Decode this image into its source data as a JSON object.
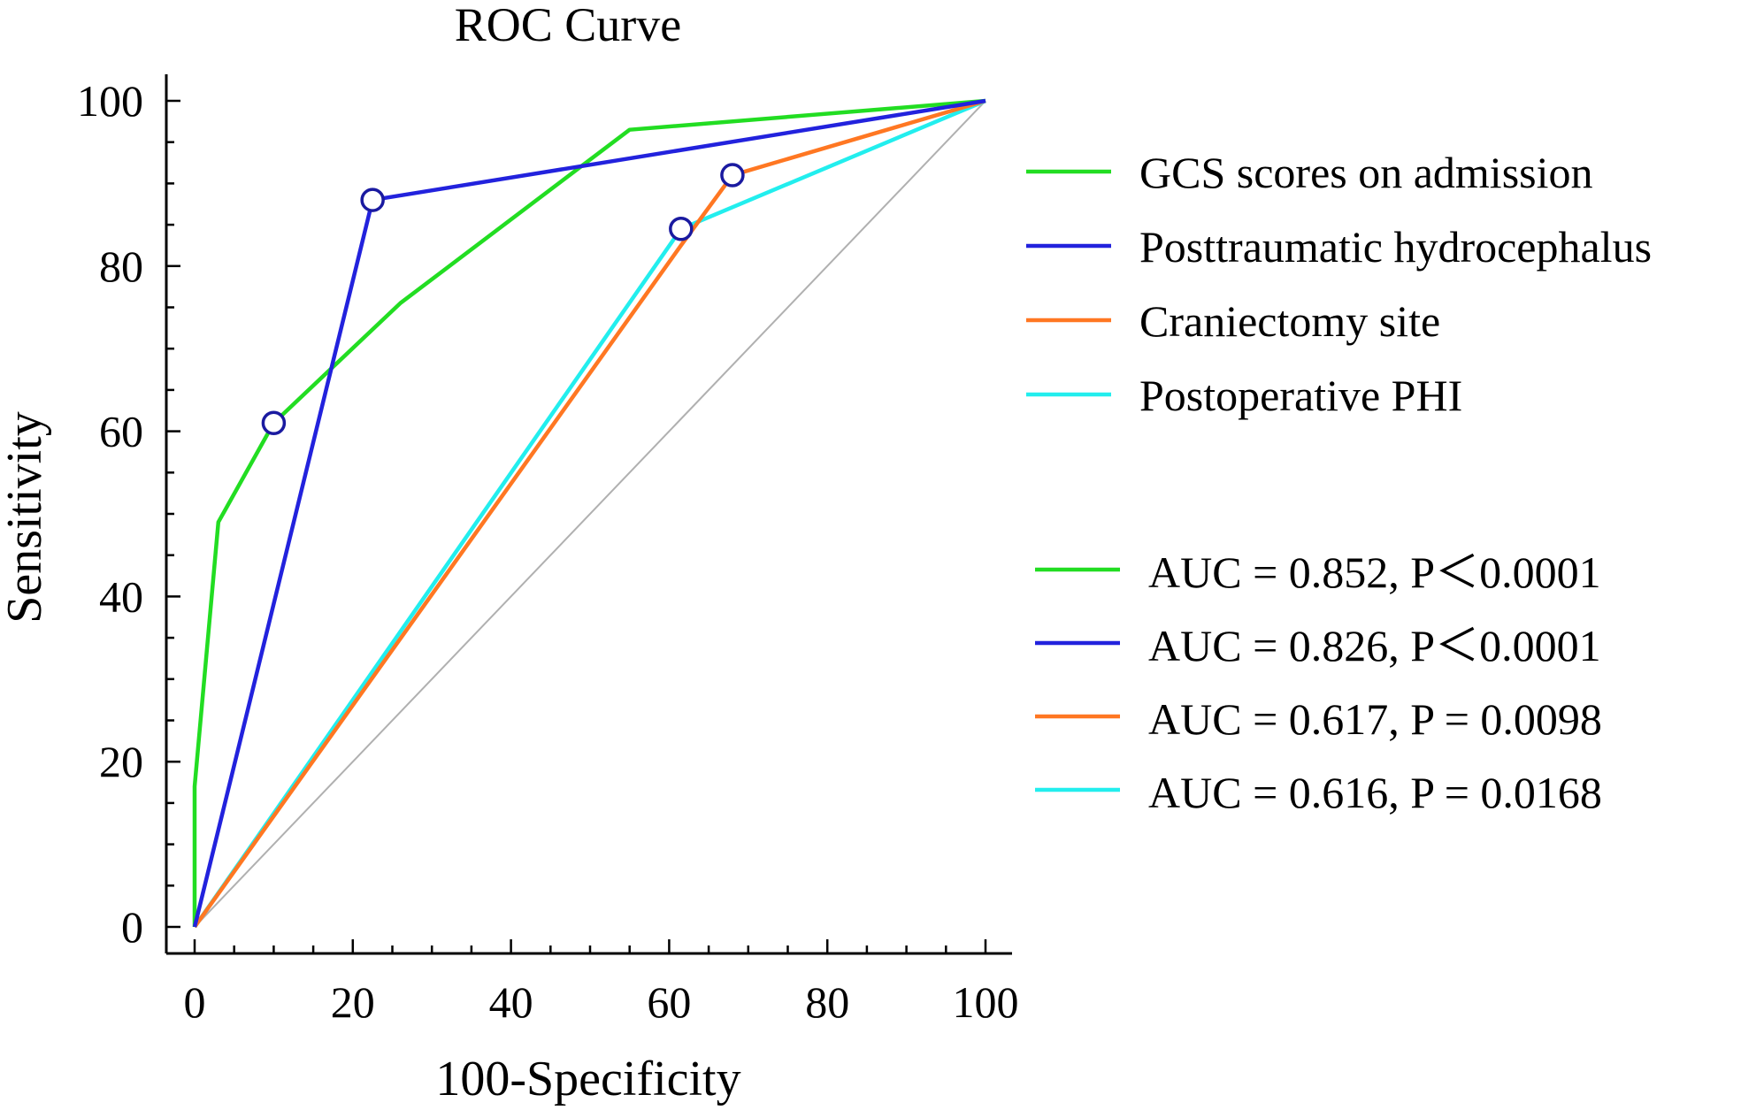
{
  "chart_data": {
    "type": "line",
    "title": "ROC Curve",
    "xlabel": "100-Specificity",
    "ylabel": "Sensitivity",
    "xlim": [
      0,
      100
    ],
    "ylim": [
      0,
      100
    ],
    "xticks": [
      "0",
      "20",
      "40",
      "60",
      "80",
      "100"
    ],
    "yticks": [
      "0",
      "20",
      "40",
      "60",
      "80",
      "100"
    ],
    "grid": false,
    "reference_line": true,
    "reference_line_color": "#b0b0b0",
    "legend_placement": "right",
    "series": [
      {
        "name": "GCS scores on admission",
        "color": "#22dd22",
        "x": [
          0,
          0,
          3,
          10,
          26,
          55,
          100
        ],
        "y": [
          0,
          17,
          49,
          61,
          75.5,
          96.5,
          100
        ],
        "criterion_point": {
          "x": 10,
          "y": 61
        },
        "auc_label": "AUC = 0.852, P＜0.0001"
      },
      {
        "name": "Posttraumatic hydrocephalus",
        "color": "#2222dd",
        "x": [
          0,
          22.5,
          100
        ],
        "y": [
          0,
          88,
          100
        ],
        "criterion_point": {
          "x": 22.5,
          "y": 88
        },
        "auc_label": "AUC = 0.826, P＜0.0001"
      },
      {
        "name": "Craniectomy site",
        "color": "#ff7722",
        "x": [
          0,
          61.5,
          68,
          100
        ],
        "y": [
          0,
          82.5,
          91,
          100
        ],
        "criterion_point": {
          "x": 68,
          "y": 91
        },
        "auc_label": "AUC = 0.617, P = 0.0098"
      },
      {
        "name": "Postoperative PHI",
        "color": "#22eeee",
        "x": [
          0,
          61.5,
          100
        ],
        "y": [
          0,
          84.5,
          100
        ],
        "criterion_point": {
          "x": 61.5,
          "y": 84.5
        },
        "auc_label": "AUC = 0.616, P = 0.0168"
      }
    ]
  }
}
